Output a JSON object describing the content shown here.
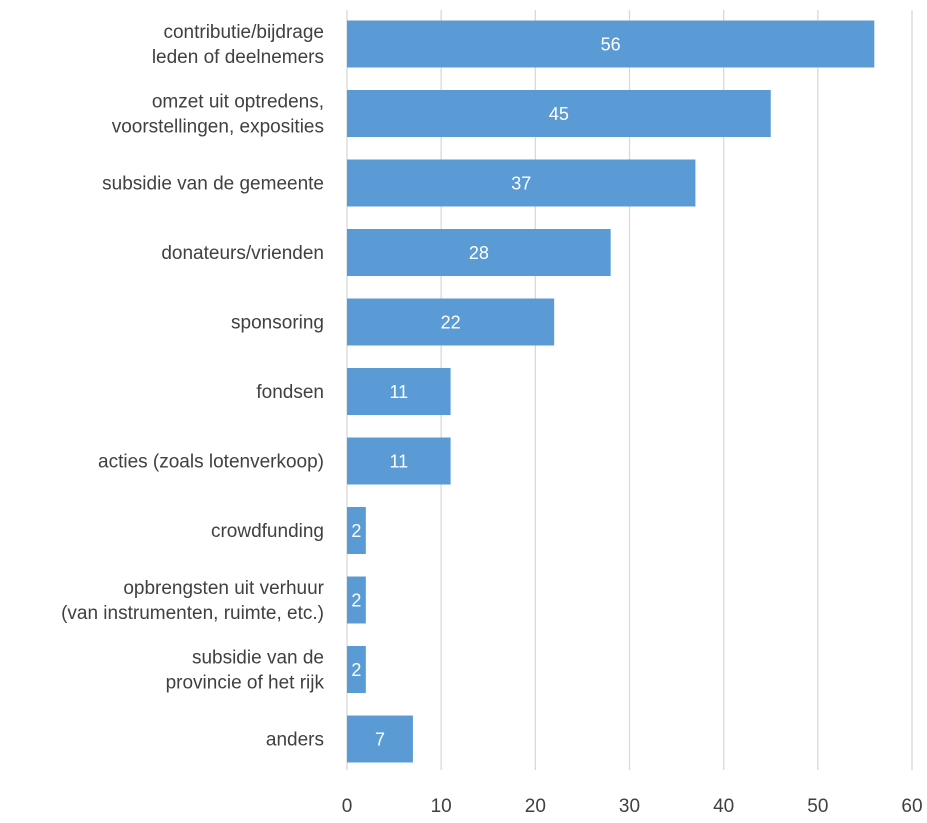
{
  "chart_data": {
    "type": "bar",
    "orientation": "horizontal",
    "categories": [
      [
        "contributie/bijdrage",
        "leden of deelnemers"
      ],
      [
        "omzet uit optredens,",
        "voorstellingen, exposities"
      ],
      [
        "subsidie van de gemeente"
      ],
      [
        "donateurs/vrienden"
      ],
      [
        "sponsoring"
      ],
      [
        "fondsen"
      ],
      [
        "acties (zoals lotenverkoop)"
      ],
      [
        "crowdfunding"
      ],
      [
        "opbrengsten uit verhuur",
        "(van instrumenten, ruimte, etc.)"
      ],
      [
        "subsidie van de",
        "provincie of het rijk"
      ],
      [
        "anders"
      ]
    ],
    "values": [
      56,
      45,
      37,
      28,
      22,
      11,
      11,
      2,
      2,
      2,
      7
    ],
    "data_labels": [
      "56",
      "45",
      "37",
      "28",
      "22",
      "11",
      "11",
      "2",
      "2",
      "2",
      "7"
    ],
    "xlim": [
      0,
      60
    ],
    "x_ticks": [
      0,
      10,
      20,
      30,
      40,
      50,
      60
    ],
    "grid": "vertical",
    "title": "",
    "xlabel": "",
    "ylabel": "",
    "colors": {
      "bar": "#5b9bd5",
      "grid": "#d9d9d9",
      "text": "#404040",
      "data_label": "#ffffff"
    }
  }
}
